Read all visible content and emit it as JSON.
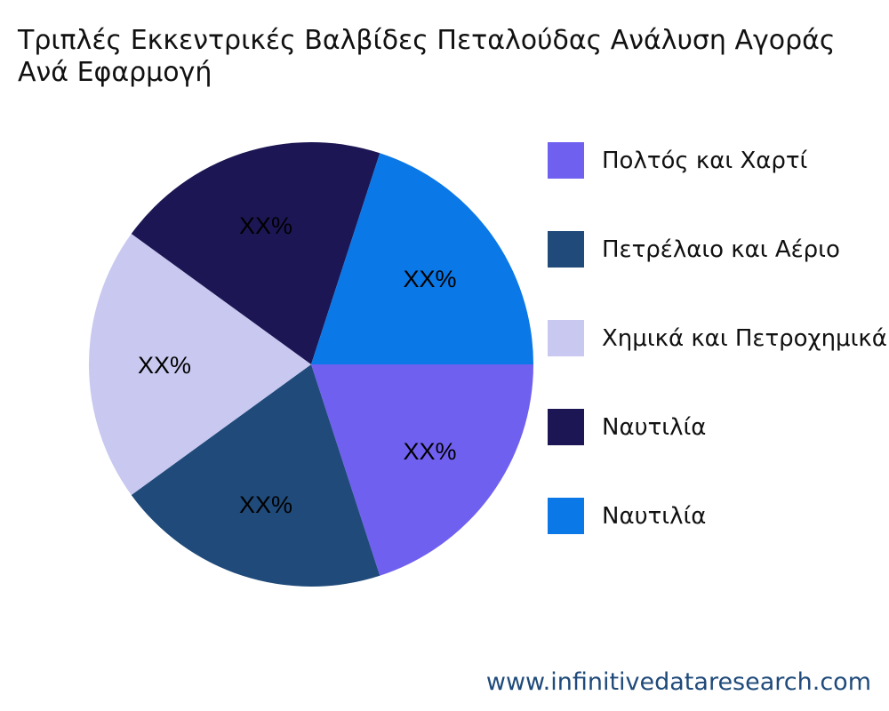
{
  "chart_data": {
    "type": "pie",
    "title": "Τριπλές Εκκεντρικές Βαλβίδες Πεταλούδας Ανάλυση Αγοράς Ανά Εφαρμογή",
    "categories": [
      "Πολτός και Χαρτί",
      "Πετρέλαιο και Αέριο",
      "Χημικά και Πετροχημικά",
      "Ναυτιλία",
      "Ναυτιλία"
    ],
    "values": [
      20,
      20,
      20,
      20,
      20
    ],
    "data_labels": [
      "XX%",
      "XX%",
      "XX%",
      "XX%",
      "XX%"
    ],
    "colors": [
      "#7060F0",
      "#1F4A7A",
      "#C8C8F0",
      "#1C1654",
      "#0A78E6"
    ],
    "legend_position": "right"
  },
  "footer": {
    "url": "www.infinitivedataresearch.com"
  }
}
